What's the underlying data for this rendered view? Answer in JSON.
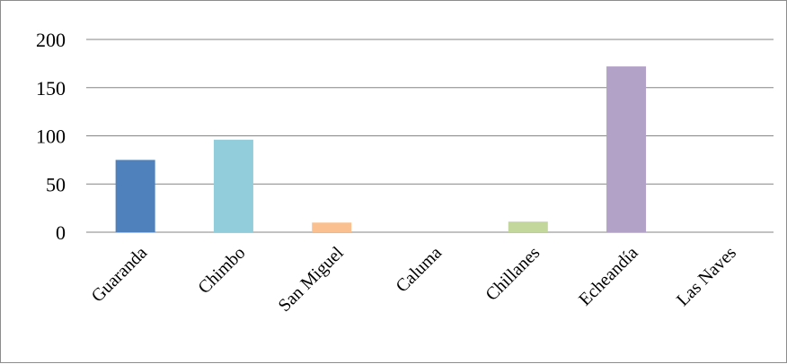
{
  "chart_data": {
    "type": "bar",
    "categories": [
      "Guaranda",
      "Chimbo",
      "San Miguel",
      "Caluma",
      "Chillanes",
      "Echeandía",
      "Las Naves"
    ],
    "values": [
      75,
      96,
      10,
      0,
      11,
      172,
      0
    ],
    "colors": [
      "#4f81bd",
      "#92cddc",
      "#fac08f",
      "#c4bd97",
      "#c3d69b",
      "#b2a2c7",
      "#8eb4e3"
    ],
    "yticks": [
      "0",
      "50",
      "100",
      "150",
      "200"
    ],
    "ylim": [
      0,
      200
    ],
    "grid": true,
    "gridline_color": "#868686",
    "title": "",
    "xlabel": "",
    "ylabel": ""
  }
}
